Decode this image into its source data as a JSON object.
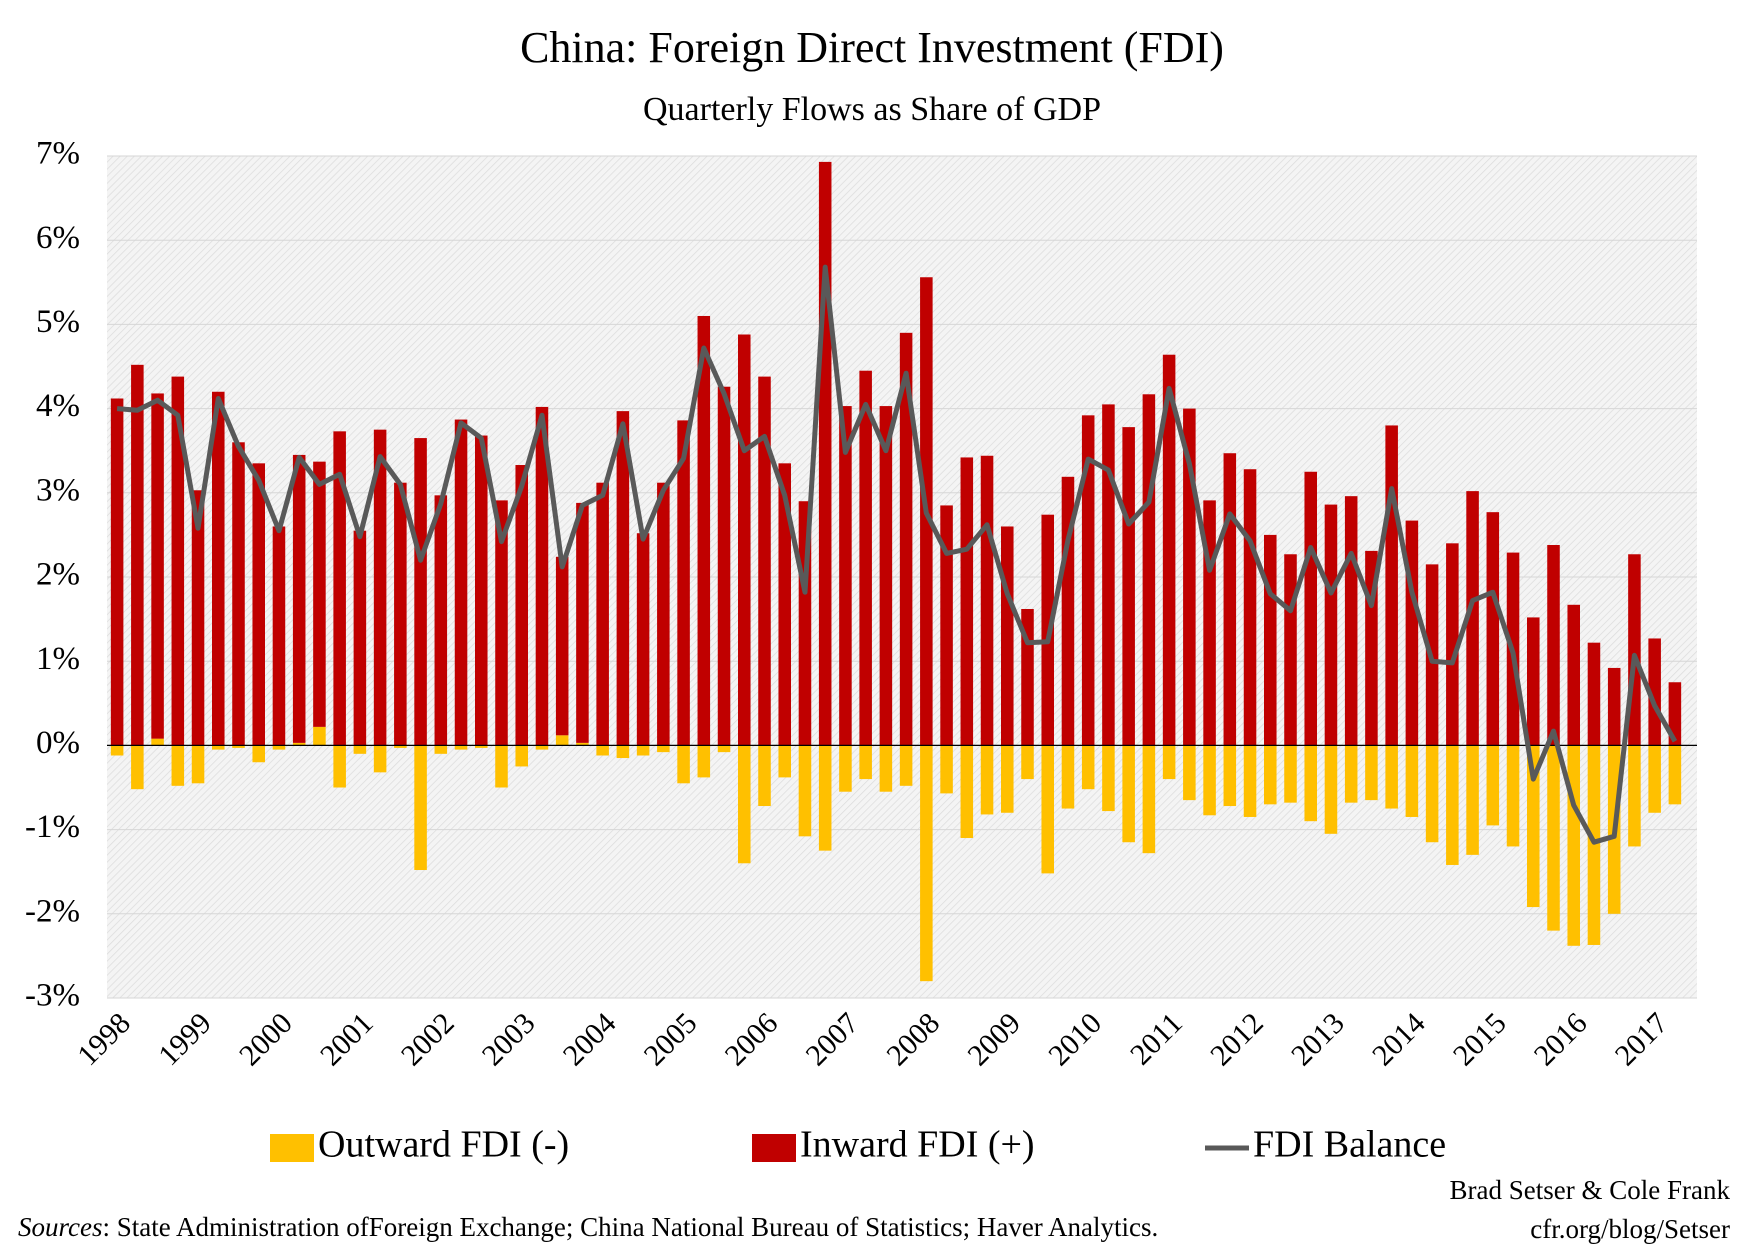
{
  "chart_data": {
    "type": "bar",
    "title": "China: Foreign Direct Investment (FDI)",
    "subtitle": "Quarterly Flows as Share of GDP",
    "categories": [
      "1998",
      null,
      null,
      null,
      "1999",
      null,
      null,
      null,
      "2000",
      null,
      null,
      null,
      "2001",
      null,
      null,
      null,
      "2002",
      null,
      null,
      null,
      "2003",
      null,
      null,
      null,
      "2004",
      null,
      null,
      null,
      "2005",
      null,
      null,
      null,
      "2006",
      null,
      null,
      null,
      "2007",
      null,
      null,
      null,
      "2008",
      null,
      null,
      null,
      "2009",
      null,
      null,
      null,
      "2010",
      null,
      null,
      null,
      "2011",
      null,
      null,
      null,
      "2012",
      null,
      null,
      null,
      "2013",
      null,
      null,
      null,
      "2014",
      null,
      null,
      null,
      "2015",
      null,
      null,
      null,
      "2016",
      null,
      null,
      null,
      "2017",
      null
    ],
    "stacked": true,
    "series": [
      {
        "name": "Outward FDI (-)",
        "type": "bar",
        "color": "#FFC000",
        "values": [
          -0.12,
          -0.52,
          0.08,
          -0.48,
          -0.45,
          -0.05,
          -0.03,
          -0.2,
          -0.05,
          0.03,
          0.22,
          -0.5,
          -0.1,
          -0.32,
          -0.03,
          -1.48,
          -0.1,
          -0.05,
          -0.03,
          -0.5,
          -0.25,
          -0.05,
          0.12,
          0.03,
          -0.12,
          -0.15,
          -0.12,
          -0.08,
          -0.45,
          -0.38,
          -0.08,
          -1.4,
          -0.72,
          -0.38,
          -1.08,
          -1.25,
          -0.55,
          -0.4,
          -0.55,
          -0.48,
          -2.8,
          -0.57,
          -1.1,
          -0.82,
          -0.8,
          -0.4,
          -1.52,
          -0.75,
          -0.52,
          -0.78,
          -1.15,
          -1.28,
          -0.4,
          -0.65,
          -0.83,
          -0.72,
          -0.85,
          -0.7,
          -0.68,
          -0.9,
          -1.05,
          -0.68,
          -0.65,
          -0.75,
          -0.85,
          -1.15,
          -1.42,
          -1.3,
          -0.95,
          -1.2,
          -1.92,
          -2.2,
          -2.38,
          -2.37,
          -2.0,
          -1.2,
          -0.8,
          -0.7
        ]
      },
      {
        "name": "Inward FDI (+)",
        "type": "bar",
        "color": "#C00000",
        "values": [
          4.12,
          4.52,
          4.1,
          4.38,
          3.03,
          4.2,
          3.6,
          3.35,
          2.6,
          3.42,
          3.15,
          3.73,
          2.55,
          3.75,
          3.12,
          3.65,
          2.97,
          3.87,
          3.68,
          2.91,
          3.33,
          4.02,
          2.12,
          2.85,
          3.12,
          3.97,
          2.52,
          3.12,
          3.86,
          5.1,
          4.26,
          4.88,
          4.38,
          3.35,
          2.9,
          6.93,
          4.03,
          4.45,
          4.03,
          4.9,
          5.56,
          2.85,
          3.42,
          3.44,
          2.6,
          1.62,
          2.74,
          3.19,
          3.92,
          4.05,
          3.78,
          4.17,
          4.64,
          4.0,
          2.91,
          3.47,
          3.28,
          2.5,
          2.27,
          3.25,
          2.86,
          2.96,
          2.31,
          3.8,
          2.67,
          2.15,
          2.4,
          3.02,
          2.77,
          2.29,
          1.52,
          2.38,
          1.67,
          1.22,
          0.92,
          2.27,
          1.27,
          0.75
        ]
      },
      {
        "name": "FDI Balance",
        "type": "line",
        "color": "#595959",
        "values": [
          4.0,
          3.98,
          4.1,
          3.92,
          2.58,
          4.12,
          3.55,
          3.15,
          2.55,
          3.42,
          3.1,
          3.22,
          2.48,
          3.43,
          3.1,
          2.2,
          2.87,
          3.83,
          3.65,
          2.42,
          3.08,
          3.92,
          2.12,
          2.85,
          2.97,
          3.82,
          2.45,
          3.03,
          3.41,
          4.72,
          4.18,
          3.5,
          3.67,
          2.97,
          1.82,
          5.68,
          3.48,
          4.05,
          3.5,
          4.42,
          2.76,
          2.28,
          2.33,
          2.62,
          1.8,
          1.22,
          1.23,
          2.44,
          3.4,
          3.27,
          2.63,
          2.89,
          4.24,
          3.35,
          2.08,
          2.75,
          2.43,
          1.8,
          1.6,
          2.35,
          1.81,
          2.28,
          1.66,
          3.05,
          1.82,
          1.0,
          0.98,
          1.72,
          1.82,
          1.1,
          -0.4,
          0.17,
          -0.71,
          -1.15,
          -1.08,
          1.07,
          0.47,
          0.05
        ]
      }
    ],
    "ylim": [
      -3,
      7
    ],
    "yticks": [
      {
        "value": -3,
        "label": "-3%"
      },
      {
        "value": -2,
        "label": "-2%"
      },
      {
        "value": -1,
        "label": "-1%"
      },
      {
        "value": 0,
        "label": "0%"
      },
      {
        "value": 1,
        "label": "1%"
      },
      {
        "value": 2,
        "label": "2%"
      },
      {
        "value": 3,
        "label": "3%"
      },
      {
        "value": 4,
        "label": "4%"
      },
      {
        "value": 5,
        "label": "5%"
      },
      {
        "value": 6,
        "label": "6%"
      },
      {
        "value": 7,
        "label": "7%"
      }
    ],
    "grid": true,
    "legend": "bottom",
    "credit": [
      "Brad Setser & Cole Frank",
      "cfr.org/blog/Setser"
    ],
    "sources": {
      "label": "Sources",
      "text": ": State Administration ofForeign Exchange; China National Bureau of Statistics; Haver Analytics."
    }
  }
}
